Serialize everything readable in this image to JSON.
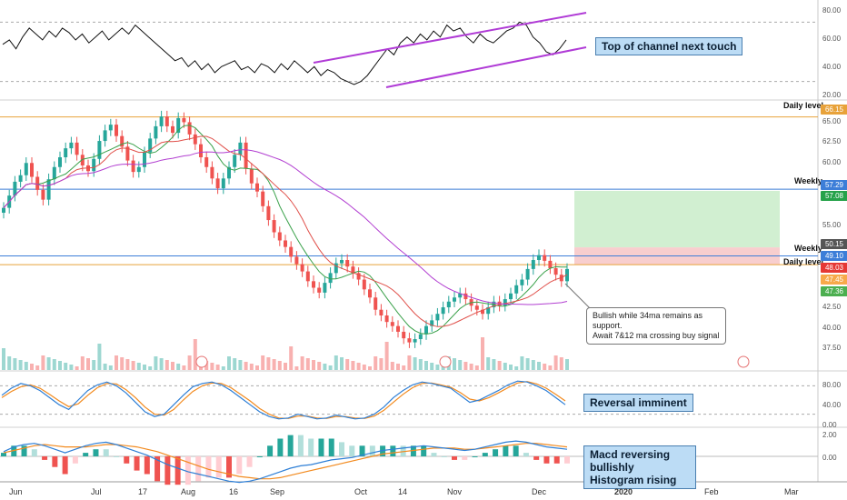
{
  "chart_data": {
    "type": "line",
    "description_panels": [
      "rsi",
      "price",
      "stochastic",
      "macd"
    ],
    "rsi": {
      "ylim": [
        20,
        80
      ],
      "ticks": [
        "80.00",
        "60.00",
        "40.00",
        "20.00"
      ],
      "values": [
        55,
        58,
        52,
        60,
        66,
        62,
        58,
        64,
        60,
        66,
        63,
        58,
        62,
        56,
        60,
        64,
        58,
        62,
        66,
        62,
        68,
        64,
        60,
        56,
        52,
        48,
        44,
        46,
        40,
        44,
        38,
        42,
        36,
        40,
        42,
        44,
        38,
        40,
        36,
        42,
        40,
        36,
        42,
        38,
        44,
        40,
        36,
        40,
        34,
        38,
        36,
        32,
        30,
        28,
        30,
        34,
        40,
        46,
        52,
        48,
        56,
        60,
        56,
        62,
        58,
        64,
        60,
        68,
        64,
        66,
        60,
        56,
        62,
        58,
        56,
        60,
        64,
        66,
        70,
        68,
        60,
        56,
        50,
        48,
        52,
        58
      ]
    },
    "price": {
      "ylim": [
        35,
        68
      ],
      "ticks": [
        "65.00",
        "62.50",
        "60.00",
        "57.50",
        "55.00",
        "52.50",
        "47.50",
        "45.00",
        "42.50",
        "40.00",
        "37.50"
      ],
      "close": [
        55.0,
        56.5,
        58.2,
        59.0,
        60.5,
        58.8,
        57.2,
        56.0,
        58.5,
        60.0,
        61.2,
        62.3,
        63.0,
        61.5,
        60.2,
        59.5,
        61.0,
        63.2,
        64.5,
        65.2,
        63.8,
        62.5,
        60.8,
        59.4,
        60.0,
        61.8,
        63.5,
        65.0,
        66.2,
        65.0,
        64.2,
        66.0,
        65.5,
        64.0,
        62.8,
        61.2,
        60.0,
        58.6,
        57.4,
        58.6,
        60.0,
        61.5,
        63.0,
        59.8,
        58.0,
        57.0,
        55.2,
        53.5,
        52.0,
        51.0,
        50.2,
        49.0,
        48.1,
        47.2,
        46.0,
        45.2,
        44.6,
        45.8,
        47.0,
        48.2,
        48.6,
        47.8,
        47.0,
        46.2,
        45.0,
        44.0,
        42.5,
        41.8,
        41.0,
        40.5,
        39.8,
        39.0,
        38.5,
        38.9,
        39.5,
        40.5,
        41.2,
        42.0,
        42.8,
        43.5,
        44.0,
        44.5,
        43.8,
        43.0,
        42.5,
        42.0,
        42.8,
        43.5,
        43.0,
        43.8,
        44.5,
        45.5,
        46.2,
        47.5,
        48.6,
        49.2,
        48.5,
        47.6,
        46.8,
        46.0,
        47.5
      ],
      "levels": [
        {
          "label": "Daily level",
          "value": 66.15,
          "color": "#e8a23a",
          "badge": "66.15"
        },
        {
          "label": "Weekly",
          "value": 57.29,
          "color": "#3d7ed8",
          "badge": "57.29"
        },
        {
          "label": "Weekly",
          "value": 49.1,
          "color": "#3d7ed8",
          "badge": "49.10"
        },
        {
          "label": "Daily level",
          "value": 48.03,
          "color": "#e8a23a",
          "badge": "48.03"
        }
      ],
      "price_badges": [
        {
          "text": "57.08",
          "color": "#26a24a",
          "value": 57.08
        },
        {
          "text": "50.15",
          "color": "#555555",
          "value": 50.15
        },
        {
          "text": "47.45",
          "color": "#f7a94a",
          "value": 47.45
        },
        {
          "text": "47.36",
          "color": "#4caf50",
          "value": 47.36
        }
      ],
      "target_zone": {
        "top": 57.08,
        "bottom": 50.15
      },
      "stop_zone": {
        "top": 50.15,
        "bottom": 48.03
      }
    },
    "stochastic": {
      "ylim": [
        0,
        100
      ],
      "ticks": [
        "80.00",
        "40.00",
        "0.00"
      ],
      "k": [
        60,
        75,
        85,
        80,
        70,
        55,
        40,
        30,
        50,
        70,
        82,
        88,
        80,
        65,
        45,
        25,
        15,
        20,
        40,
        60,
        78,
        85,
        88,
        82,
        70,
        55,
        40,
        25,
        15,
        10,
        12,
        20,
        15,
        10,
        12,
        18,
        14,
        10,
        12,
        20,
        35,
        55,
        70,
        82,
        88,
        85,
        80,
        75,
        60,
        45,
        50,
        60,
        70,
        82,
        90,
        88,
        80,
        70,
        55,
        40
      ],
      "d": [
        55,
        68,
        78,
        82,
        75,
        62,
        48,
        36,
        42,
        60,
        76,
        85,
        84,
        72,
        55,
        35,
        20,
        18,
        30,
        50,
        68,
        80,
        86,
        85,
        76,
        62,
        48,
        32,
        20,
        12,
        11,
        16,
        16,
        12,
        11,
        15,
        15,
        12,
        11,
        16,
        28,
        45,
        62,
        76,
        85,
        86,
        82,
        77,
        66,
        52,
        48,
        55,
        65,
        76,
        86,
        89,
        84,
        75,
        62,
        48
      ]
    },
    "macd": {
      "ylim": [
        -2,
        2
      ],
      "ticks": [
        "2.00",
        "0.00"
      ],
      "macd": [
        0.4,
        0.8,
        1.0,
        1.1,
        0.9,
        0.6,
        0.3,
        0.6,
        0.9,
        1.1,
        1.2,
        1.0,
        0.7,
        0.4,
        0.1,
        -0.3,
        -0.7,
        -1.0,
        -1.3,
        -1.5,
        -1.7,
        -1.9,
        -2.1,
        -2.2,
        -2.1,
        -1.9,
        -1.6,
        -1.3,
        -1.0,
        -0.8,
        -0.7,
        -0.5,
        -0.3,
        -0.2,
        -0.1,
        0.1,
        0.3,
        0.5,
        0.6,
        0.7,
        0.8,
        0.9,
        0.8,
        0.7,
        0.6,
        0.5,
        0.6,
        0.8,
        1.0,
        1.2,
        1.3,
        1.2,
        1.0,
        0.8,
        0.7,
        0.6
      ],
      "signal": [
        0.3,
        0.5,
        0.7,
        0.9,
        1.0,
        0.9,
        0.8,
        0.8,
        0.8,
        0.9,
        1.0,
        1.0,
        0.9,
        0.8,
        0.6,
        0.4,
        0.1,
        -0.2,
        -0.5,
        -0.8,
        -1.1,
        -1.3,
        -1.5,
        -1.7,
        -1.8,
        -1.9,
        -1.9,
        -1.8,
        -1.6,
        -1.4,
        -1.2,
        -1.0,
        -0.8,
        -0.6,
        -0.4,
        -0.2,
        0.0,
        0.2,
        0.3,
        0.4,
        0.5,
        0.6,
        0.7,
        0.7,
        0.7,
        0.6,
        0.6,
        0.7,
        0.8,
        0.9,
        1.0,
        1.1,
        1.1,
        1.0,
        0.9,
        0.8
      ]
    },
    "x_labels": [
      "Jun",
      "Jul",
      "17",
      "Aug",
      "16",
      "Sep",
      "Oct",
      "14",
      "Nov",
      "Dec",
      "2020",
      "Feb",
      "Mar"
    ]
  },
  "annotations": {
    "rsi_note": "Top of channel next touch",
    "price_note_line1": "Bullish while 34ma remains as support.",
    "price_note_line2": "Await 7&12 ma crossing buy signal",
    "stoch_note": "Reversal imminent",
    "macd_note_line1": "Macd reversing bullishly",
    "macd_note_line2": "Histogram rising"
  },
  "colors": {
    "rsi_line": "#111111",
    "channel": "#b03bd6",
    "candle_up": "#26a69a",
    "candle_down": "#ef5350",
    "ma7": "#3aa14a",
    "ma12": "#e0504a",
    "ma34": "#b23fd1",
    "stoch_k": "#2e7fd6",
    "stoch_d": "#f28a1e",
    "macd_line": "#2e7fd6",
    "signal_line": "#f28a1e"
  }
}
